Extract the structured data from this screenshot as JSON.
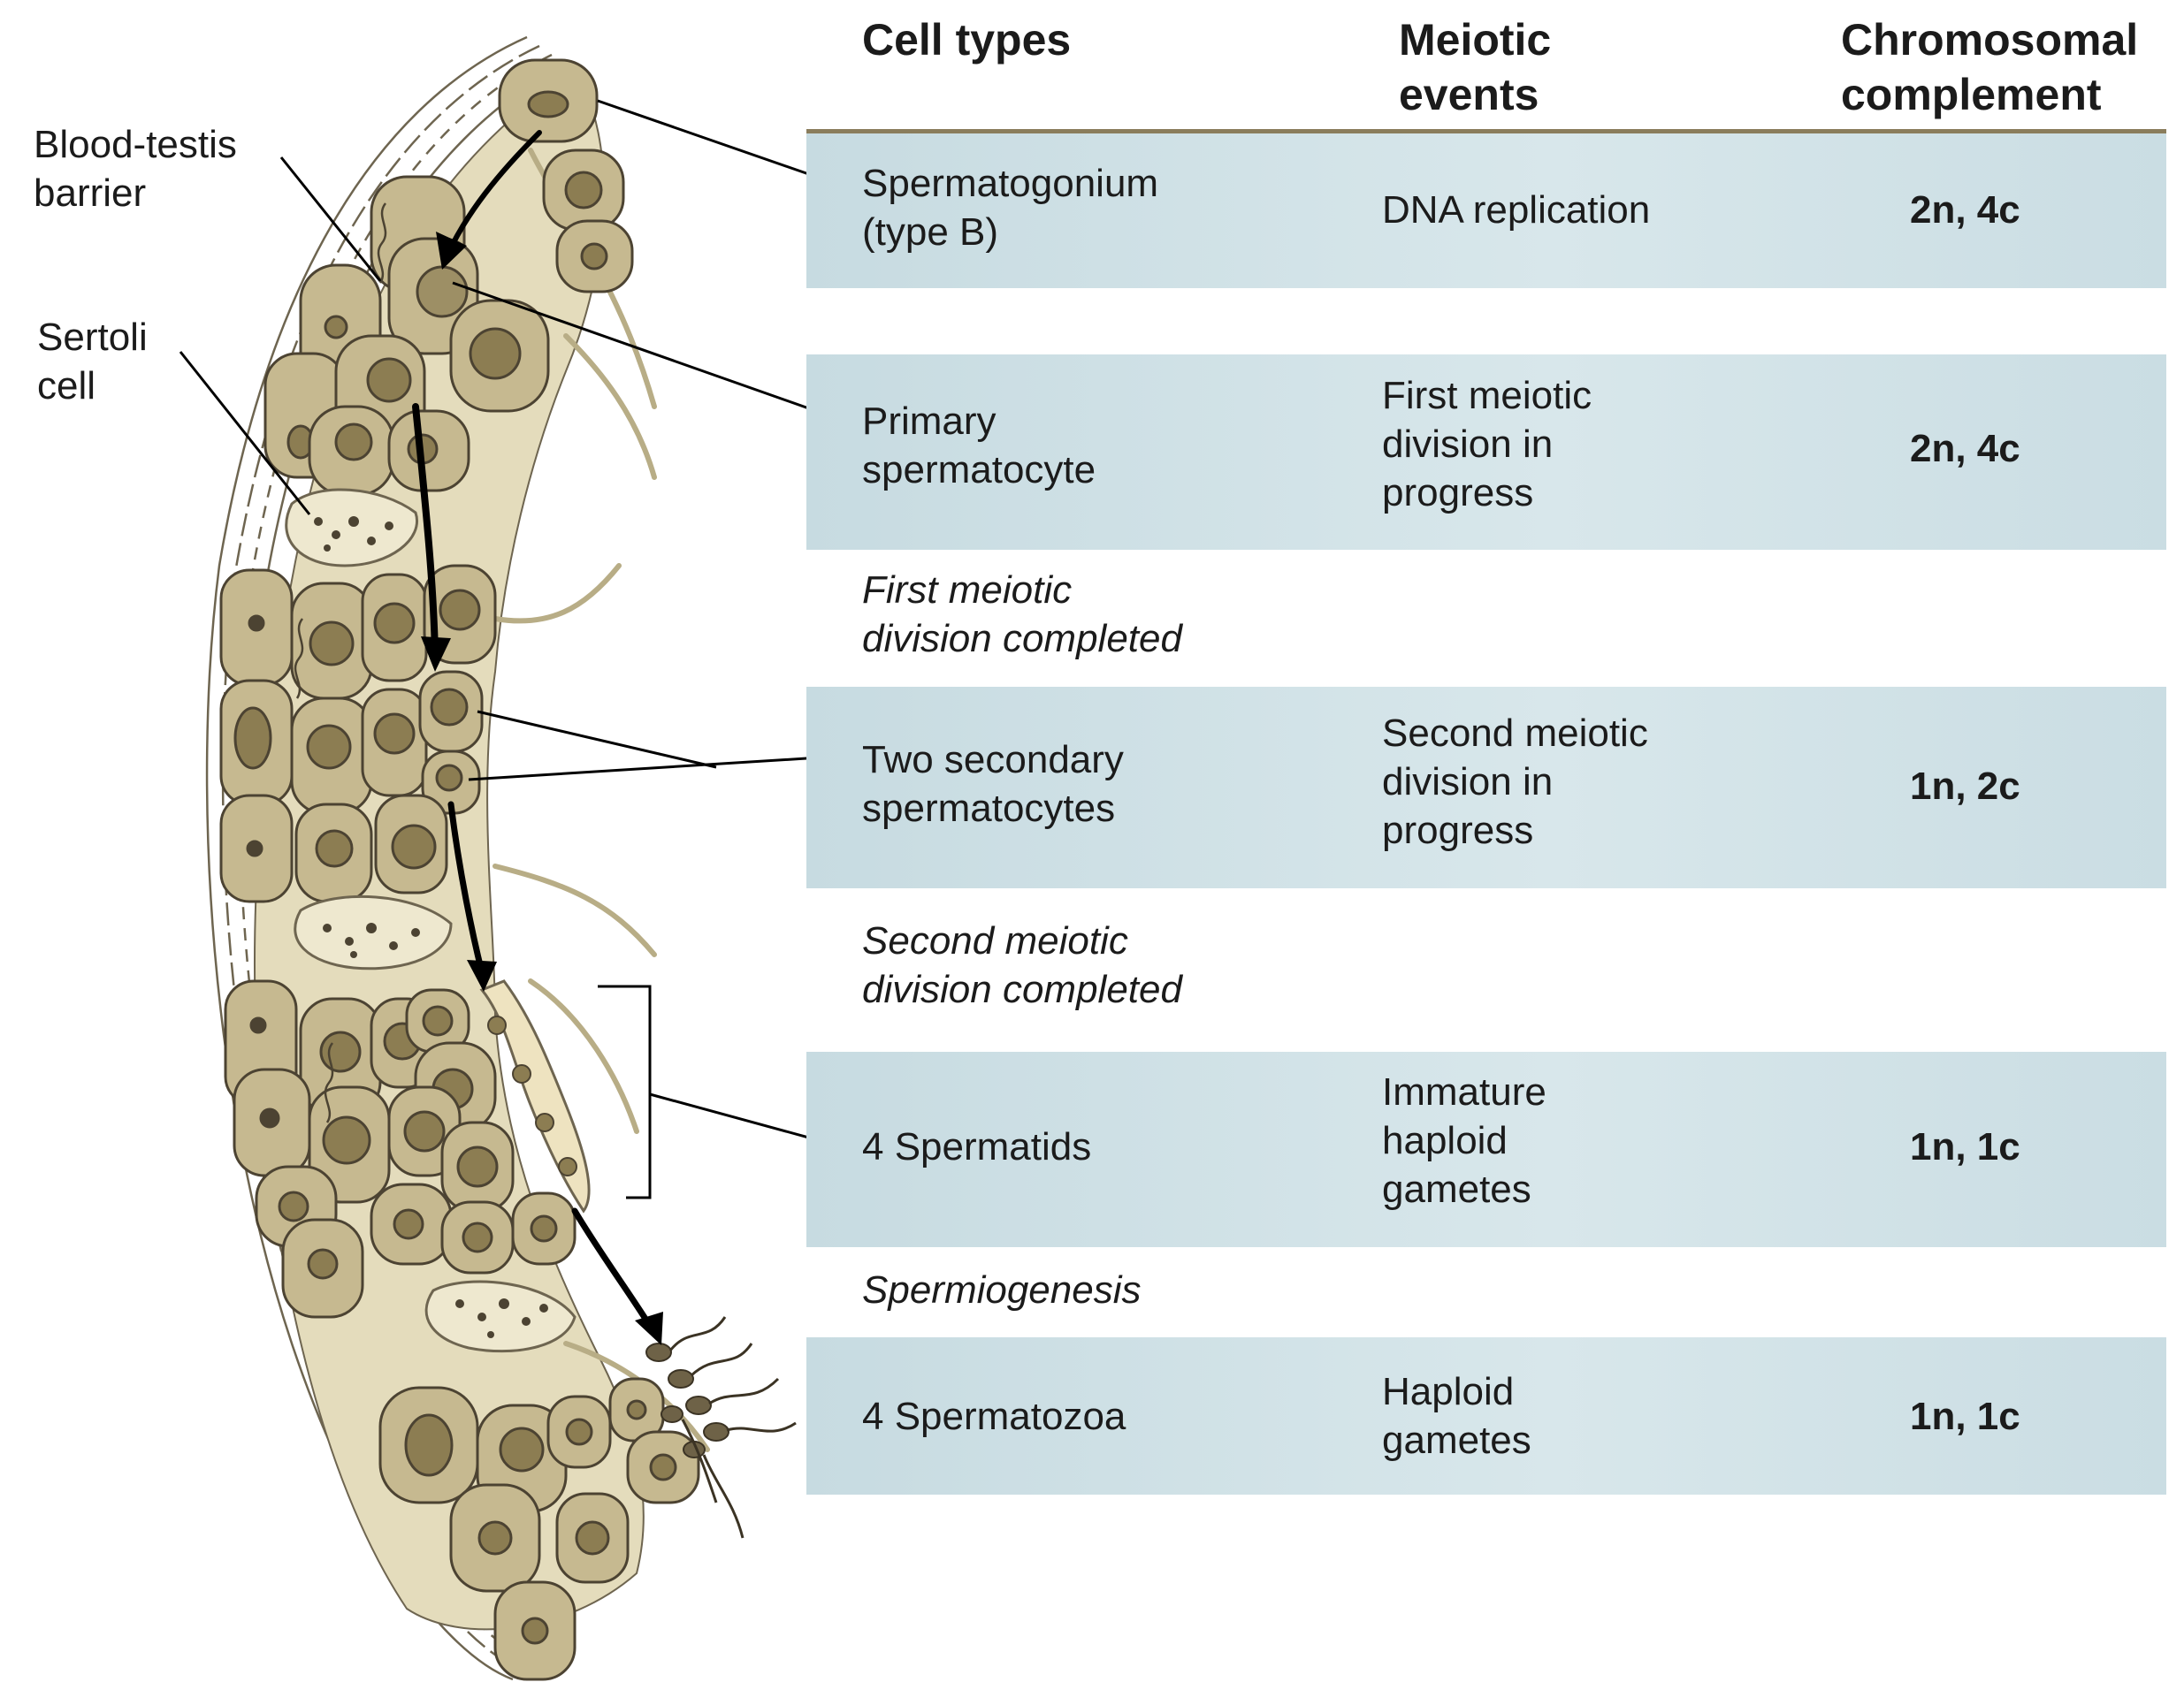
{
  "colors": {
    "cell_fill": "#c6b990",
    "cell_edge": "#4c4332",
    "nucleus": "#8c7d52",
    "sertoli_fill": "#e9e1c4",
    "cytoplasm": "#dcd3b0",
    "band": "#cfe1e6",
    "rule": "#8a7d5c"
  },
  "labels": {
    "blood_testis_barrier": "Blood-testis\nbarrier",
    "sertoli_cell": "Sertoli\ncell"
  },
  "headers": {
    "cell_types": "Cell types",
    "meiotic_events": "Meiotic\nevents",
    "chromosomal_complement": "Chromosomal\ncomplement"
  },
  "rows": [
    {
      "cell_type": "Spermatogonium\n(type B)",
      "event": "DNA replication",
      "complement": "2n, 4c"
    },
    {
      "cell_type": "Primary\nspermatocyte",
      "event": "First meiotic\ndivision in\nprogress",
      "complement": "2n, 4c"
    },
    {
      "cell_type": "Two secondary\nspermatocytes",
      "event": "Second meiotic\ndivision in\nprogress",
      "complement": "1n, 2c"
    },
    {
      "cell_type": "4 Spermatids",
      "event": "Immature\nhaploid\ngametes",
      "complement": "1n, 1c"
    },
    {
      "cell_type": "4 Spermatozoa",
      "event": "Haploid\ngametes",
      "complement": "1n, 1c"
    }
  ],
  "notes": {
    "first_completed": "First meiotic\ndivision completed",
    "second_completed": "Second meiotic\ndivision completed",
    "spermiogenesis": "Spermiogenesis"
  }
}
